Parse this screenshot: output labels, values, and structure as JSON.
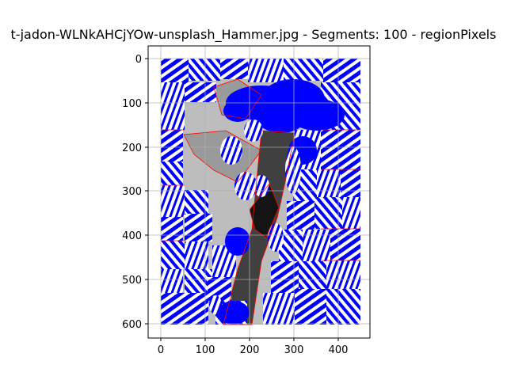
{
  "chart_data": {
    "type": "image-plot",
    "title": "t-jadon-WLNkAHCjYOw-unsplash_Hammer.jpg - Segments: 100 - regionPixels",
    "xlabel": "",
    "ylabel": "",
    "xlim": [
      -25,
      473
    ],
    "ylim": [
      632,
      -32
    ],
    "x_ticks": [
      0,
      100,
      200,
      300,
      400
    ],
    "y_ticks": [
      0,
      100,
      200,
      300,
      400,
      500,
      600
    ],
    "image_extent": {
      "width": 455,
      "height": 607
    },
    "grid": true,
    "colors": {
      "background_gray": "#bdbdbd",
      "mid_gray": "#9a9a9a",
      "dark_gray": "#404040",
      "black": "#141414",
      "segment_blue": "#0000ff",
      "boundary_red": "#ff0000",
      "hatch_white": "#ffffff"
    }
  }
}
